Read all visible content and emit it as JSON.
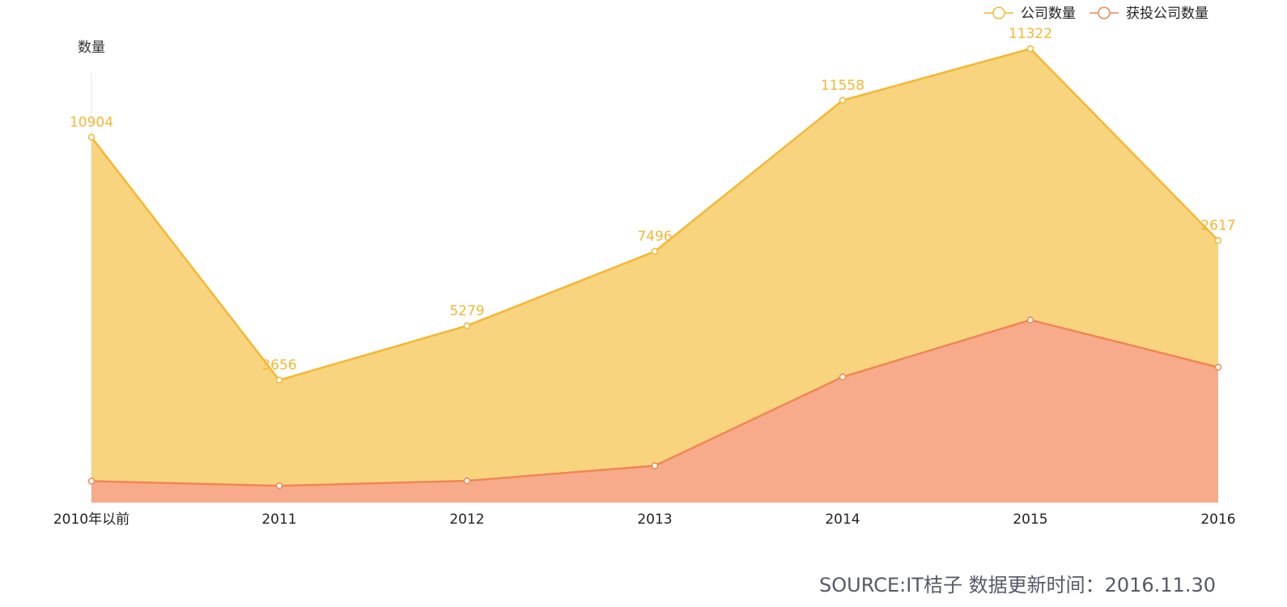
{
  "chart_data": {
    "type": "area",
    "ylabel": "数量",
    "categories": [
      "2010年以前",
      "2011",
      "2012",
      "2013",
      "2014",
      "2015",
      "2016"
    ],
    "ylim": [
      0,
      15000
    ],
    "grid": false,
    "legend_position": "top-right",
    "series": [
      {
        "name": "公司数量",
        "values": [
          10904,
          3656,
          5279,
          7496,
          11558,
          11322,
          2617
        ],
        "top_values": [
          10904,
          3656,
          5279,
          7496,
          12005,
          13545,
          7823
        ],
        "color": "#f5b733",
        "fill": "#f8d47e",
        "show_labels": true
      },
      {
        "name": "获投公司数量",
        "values": [
          640,
          500,
          650,
          1100,
          3750,
          5450,
          4040
        ],
        "color": "#f08655",
        "fill": "#f8ab8b",
        "show_labels": false
      }
    ]
  },
  "footer": {
    "source": "SOURCE:IT桔子 数据更新时间：2016.11.30"
  }
}
